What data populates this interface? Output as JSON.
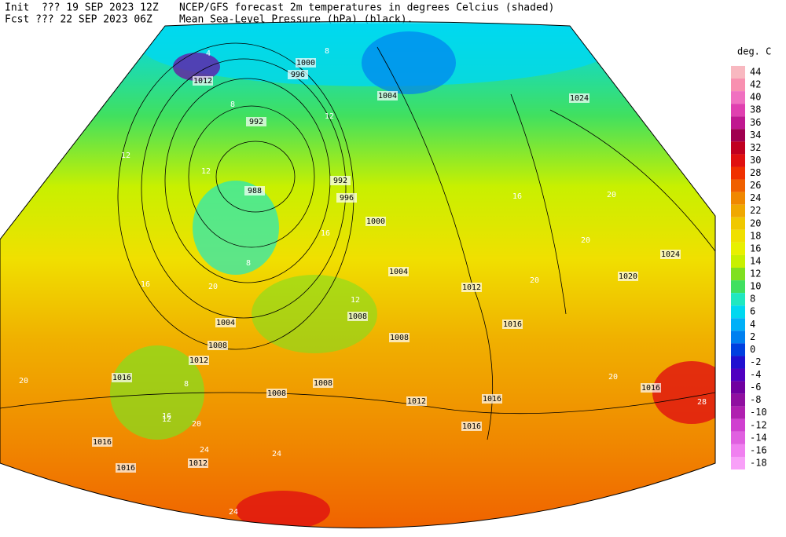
{
  "header": {
    "init": "Init  ??? 19 SEP 2023 12Z",
    "fcst": "Fcst ??? 22 SEP 2023 06Z",
    "title": "NCEP/GFS forecast 2m temperatures in degrees Celcius (shaded)",
    "subtitle": "Mean Sea-Level Pressure (hPa) (black)."
  },
  "legend": {
    "title": "deg. C",
    "levels": [
      {
        "label": 44,
        "color": "#f8b8c0"
      },
      {
        "label": 42,
        "color": "#f890b0"
      },
      {
        "label": 40,
        "color": "#f070c0"
      },
      {
        "label": 38,
        "color": "#e040b0"
      },
      {
        "label": 36,
        "color": "#c01890"
      },
      {
        "label": 34,
        "color": "#a00050"
      },
      {
        "label": 32,
        "color": "#c00020"
      },
      {
        "label": 30,
        "color": "#e01010"
      },
      {
        "label": 28,
        "color": "#f03000"
      },
      {
        "label": 26,
        "color": "#f06000"
      },
      {
        "label": 24,
        "color": "#f08800"
      },
      {
        "label": 22,
        "color": "#f0a800"
      },
      {
        "label": 20,
        "color": "#f0c800"
      },
      {
        "label": 18,
        "color": "#f0e000"
      },
      {
        "label": 16,
        "color": "#e8f000"
      },
      {
        "label": 14,
        "color": "#c8f000"
      },
      {
        "label": 12,
        "color": "#80e020"
      },
      {
        "label": 10,
        "color": "#40e060"
      },
      {
        "label": 8,
        "color": "#20e8c0"
      },
      {
        "label": 6,
        "color": "#00d8f0"
      },
      {
        "label": 4,
        "color": "#00b0f8"
      },
      {
        "label": 2,
        "color": "#0080f0"
      },
      {
        "label": 0,
        "color": "#0040e0"
      },
      {
        "label": -2,
        "color": "#2010d0"
      },
      {
        "label": -4,
        "color": "#5000c0"
      },
      {
        "label": -6,
        "color": "#7000a0"
      },
      {
        "label": -8,
        "color": "#9010a0"
      },
      {
        "label": -10,
        "color": "#b020b0"
      },
      {
        "label": -12,
        "color": "#d040d0"
      },
      {
        "label": -14,
        "color": "#e060e0"
      },
      {
        "label": -16,
        "color": "#f080f0"
      },
      {
        "label": -18,
        "color": "#f8a0f8"
      }
    ]
  },
  "isobar_labels": [
    "1012",
    "1000",
    "996",
    "1004",
    "1024",
    "992",
    "988",
    "992",
    "996",
    "1000",
    "1004",
    "1012",
    "1024",
    "1020",
    "1016",
    "1004",
    "1008",
    "1012",
    "1016",
    "1008",
    "1008",
    "1008",
    "1008",
    "1012",
    "1016",
    "1016",
    "1016",
    "1016",
    "1016",
    "1012"
  ],
  "temperature_labels": [
    "4",
    "8",
    "8",
    "12",
    "12",
    "12",
    "8",
    "16",
    "16",
    "12",
    "20",
    "16",
    "20",
    "20",
    "20",
    "8",
    "16",
    "20",
    "24",
    "24",
    "24",
    "20",
    "28",
    "12",
    "20"
  ]
}
